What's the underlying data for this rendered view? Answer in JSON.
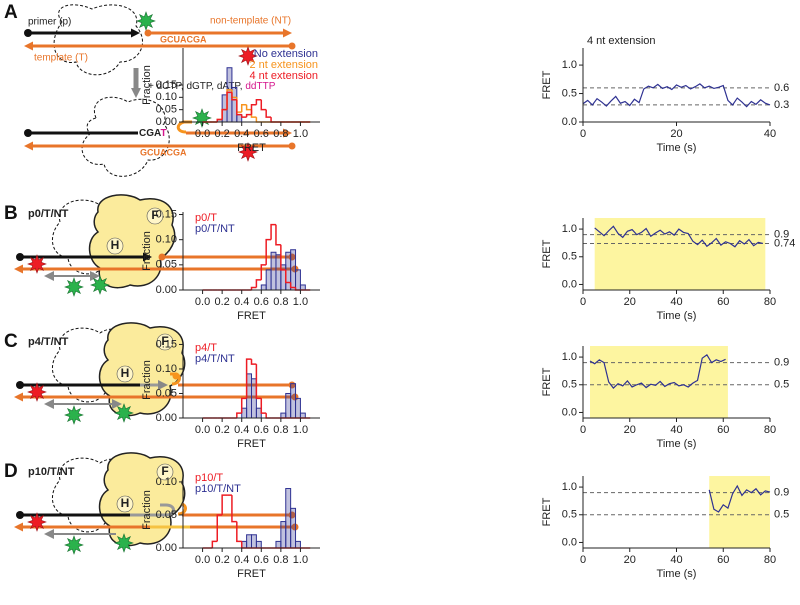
{
  "panels": [
    {
      "label": "A",
      "schematic": {
        "primer": "primer (p)",
        "non_template": "non-template (NT)",
        "template": "template (T)",
        "sequence": "GCUACGA",
        "nucleotides": "+ dCTP, dGTP, dATP,",
        "terminator": "ddTTP",
        "extended": "CGA",
        "added": "T",
        "sequence_after": "GCUACGA"
      }
    },
    {
      "label": "B",
      "schematic": {
        "construct": "p0/T/NT",
        "fingers": "F",
        "helix": "H"
      }
    },
    {
      "label": "C",
      "schematic": {
        "construct": "p4/T/NT",
        "fingers": "F",
        "helix": "H"
      }
    },
    {
      "label": "D",
      "schematic": {
        "construct": "p10/T/NT",
        "fingers": "F",
        "helix": "H"
      }
    }
  ],
  "chart_data": [
    {
      "type": "histogram",
      "x_label": "FRET",
      "y_label": "Fraction",
      "legend": "upper right",
      "bins": [
        0,
        0.05,
        0.1,
        0.15,
        0.2,
        0.25,
        0.3,
        0.35,
        0.4,
        0.45,
        0.5,
        0.55,
        0.6,
        0.65,
        0.7,
        0.75,
        0.8,
        0.85,
        0.9,
        0.95,
        1,
        1.05,
        1.1
      ],
      "series": [
        {
          "name": "No extension",
          "color": "#2e3192",
          "style": "bars",
          "values": [
            0,
            0,
            0,
            0.01,
            0.11,
            0.22,
            0.14,
            0.03,
            0,
            0,
            0,
            0,
            0,
            0,
            0,
            0,
            0,
            0,
            0,
            0,
            0,
            0
          ]
        },
        {
          "name": "2 nt extension",
          "color": "#f7941d",
          "style": "step",
          "values": [
            0,
            0,
            0,
            0.01,
            0.05,
            0.13,
            0.1,
            0.04,
            0.07,
            0.05,
            0.02,
            0,
            0,
            0,
            0,
            0,
            0,
            0,
            0,
            0,
            0,
            0
          ]
        },
        {
          "name": "4 nt extension",
          "color": "#ed1c24",
          "style": "step",
          "values": [
            0,
            0,
            0,
            0.01,
            0.05,
            0.12,
            0.09,
            0.03,
            0.02,
            0.03,
            0.07,
            0.09,
            0.05,
            0.02,
            0,
            0,
            0,
            0,
            0,
            0,
            0,
            0
          ]
        }
      ],
      "xlim": [
        -0.2,
        1.2
      ],
      "xticks": [
        {
          "value": 0,
          "label": "0.0"
        },
        0.2,
        0.4,
        0.6,
        0.8,
        {
          "value": 1,
          "label": "1.0"
        }
      ],
      "ylim": [
        0,
        0.3
      ],
      "yticks": [
        {
          "value": 0,
          "label": "0.00"
        },
        0.05,
        {
          "value": 0.1,
          "label": "0.10"
        },
        0.15
      ]
    },
    {
      "type": "line",
      "title": "4 nt extension",
      "x_label": "Time (s)",
      "y_label": "FRET",
      "color": "#2e3192",
      "x": [
        0,
        1,
        2,
        3,
        4,
        5,
        6,
        7,
        8,
        9,
        10,
        11,
        12,
        13,
        14,
        15,
        16,
        17,
        18,
        19,
        20,
        21,
        22,
        23,
        24,
        25,
        26,
        27,
        28,
        29,
        30,
        31,
        32,
        33,
        34,
        35,
        36,
        37,
        38,
        39,
        40
      ],
      "values": [
        0.32,
        0.38,
        0.3,
        0.41,
        0.35,
        0.28,
        0.37,
        0.45,
        0.33,
        0.36,
        0.29,
        0.4,
        0.34,
        0.58,
        0.63,
        0.6,
        0.66,
        0.59,
        0.62,
        0.57,
        0.65,
        0.61,
        0.64,
        0.58,
        0.62,
        0.67,
        0.6,
        0.63,
        0.59,
        0.61,
        0.64,
        0.38,
        0.3,
        0.42,
        0.35,
        0.27,
        0.36,
        0.31,
        0.39,
        0.33,
        0.3
      ],
      "reference_lines": [
        0.6,
        0.3
      ],
      "xlim": [
        0,
        40
      ],
      "xticks": [
        0,
        20,
        40
      ],
      "ylim": [
        0,
        1.3
      ],
      "yticks": [
        {
          "value": 0,
          "label": "0.0"
        },
        0.5,
        {
          "value": 1,
          "label": "1.0"
        }
      ]
    },
    {
      "type": "histogram",
      "x_label": "FRET",
      "y_label": "Fraction",
      "legend": "upper left",
      "bins": [
        0,
        0.05,
        0.1,
        0.15,
        0.2,
        0.25,
        0.3,
        0.35,
        0.4,
        0.45,
        0.5,
        0.55,
        0.6,
        0.65,
        0.7,
        0.75,
        0.8,
        0.85,
        0.9,
        0.95,
        1,
        1.05,
        1.1
      ],
      "series": [
        {
          "name": "p0/T",
          "color": "#ed1c24",
          "style": "step",
          "values": [
            0,
            0,
            0,
            0,
            0,
            0,
            0,
            0,
            0,
            0,
            0.005,
            0.02,
            0.05,
            0.1,
            0.13,
            0.09,
            0.04,
            0.015,
            0.005,
            0,
            0,
            0
          ]
        },
        {
          "name": "p0/T/NT",
          "color": "#2e3192",
          "style": "bars",
          "values": [
            0,
            0,
            0,
            0,
            0,
            0,
            0,
            0,
            0,
            0,
            0,
            0,
            0.01,
            0.04,
            0.075,
            0.07,
            0.05,
            0.075,
            0.08,
            0.04,
            0.01,
            0
          ]
        }
      ],
      "xlim": [
        -0.2,
        1.2
      ],
      "xticks": [
        {
          "value": 0,
          "label": "0.0"
        },
        0.2,
        0.4,
        0.6,
        0.8,
        {
          "value": 1,
          "label": "1.0"
        }
      ],
      "ylim": [
        0,
        0.155
      ],
      "yticks": [
        {
          "value": 0,
          "label": "0.00"
        },
        0.05,
        {
          "value": 0.1,
          "label": "0.10"
        },
        0.15
      ]
    },
    {
      "type": "line",
      "x_label": "Time (s)",
      "y_label": "FRET",
      "color": "#2e3192",
      "highlight": [
        5,
        78
      ],
      "highlight_color": "#fdf5a0",
      "x": [
        5,
        7,
        9,
        11,
        13,
        15,
        17,
        19,
        21,
        23,
        25,
        27,
        29,
        31,
        33,
        35,
        37,
        39,
        41,
        43,
        45,
        47,
        49,
        51,
        53,
        55,
        57,
        59,
        61,
        63,
        65,
        67,
        69,
        71,
        73,
        75,
        77
      ],
      "values": [
        1.02,
        0.95,
        0.88,
        0.97,
        1.05,
        0.92,
        0.85,
        0.96,
        0.99,
        0.9,
        0.94,
        1.01,
        0.87,
        0.93,
        0.98,
        0.91,
        0.95,
        0.89,
        1.0,
        0.94,
        0.92,
        0.78,
        0.72,
        0.8,
        0.69,
        0.75,
        0.83,
        0.71,
        0.77,
        0.74,
        0.68,
        0.79,
        0.73,
        0.81,
        0.7,
        0.76,
        0.74
      ],
      "reference_lines": [
        0.9,
        0.74
      ],
      "xlim": [
        0,
        80
      ],
      "xticks": [
        0,
        20,
        40,
        60,
        80
      ],
      "ylim": [
        -0.1,
        1.2
      ],
      "yticks": [
        {
          "value": 0,
          "label": "0.0"
        },
        0.5,
        {
          "value": 1,
          "label": "1.0"
        }
      ]
    },
    {
      "type": "histogram",
      "x_label": "FRET",
      "y_label": "Fraction",
      "legend": "upper left",
      "bins": [
        0,
        0.05,
        0.1,
        0.15,
        0.2,
        0.25,
        0.3,
        0.35,
        0.4,
        0.45,
        0.5,
        0.55,
        0.6,
        0.65,
        0.7,
        0.75,
        0.8,
        0.85,
        0.9,
        0.95,
        1,
        1.05,
        1.1
      ],
      "series": [
        {
          "name": "p4/T",
          "color": "#ed1c24",
          "style": "step",
          "values": [
            0,
            0,
            0,
            0,
            0,
            0,
            0,
            0.01,
            0.04,
            0.12,
            0.11,
            0.04,
            0.01,
            0,
            0,
            0,
            0,
            0,
            0,
            0,
            0,
            0
          ]
        },
        {
          "name": "p4/T/NT",
          "color": "#2e3192",
          "style": "bars",
          "values": [
            0,
            0,
            0,
            0,
            0,
            0,
            0,
            0,
            0.02,
            0.09,
            0.08,
            0.02,
            0,
            0,
            0,
            0,
            0.01,
            0.05,
            0.07,
            0.04,
            0.01,
            0
          ]
        }
      ],
      "xlim": [
        -0.2,
        1.2
      ],
      "xticks": [
        {
          "value": 0,
          "label": "0.0"
        },
        0.2,
        0.4,
        0.6,
        0.8,
        {
          "value": 1,
          "label": "1.0"
        }
      ],
      "ylim": [
        0,
        0.155
      ],
      "yticks": [
        {
          "value": 0,
          "label": "0.00"
        },
        0.05,
        {
          "value": 0.1,
          "label": "0.10"
        },
        0.15
      ]
    },
    {
      "type": "line",
      "x_label": "Time (s)",
      "y_label": "FRET",
      "color": "#2e3192",
      "highlight": [
        3,
        62
      ],
      "highlight_color": "#fdf5a0",
      "x": [
        3,
        5,
        7,
        9,
        11,
        13,
        15,
        17,
        19,
        21,
        23,
        25,
        27,
        29,
        31,
        33,
        35,
        37,
        39,
        41,
        43,
        45,
        47,
        49,
        51,
        53,
        55,
        57,
        59,
        61
      ],
      "values": [
        0.93,
        0.88,
        0.95,
        0.9,
        0.55,
        0.44,
        0.52,
        0.48,
        0.57,
        0.46,
        0.5,
        0.53,
        0.45,
        0.51,
        0.49,
        0.56,
        0.47,
        0.52,
        0.54,
        0.48,
        0.5,
        0.46,
        0.53,
        0.58,
        0.98,
        1.04,
        0.9,
        0.95,
        0.92,
        0.96
      ],
      "reference_lines": [
        0.9,
        0.5
      ],
      "xlim": [
        0,
        80
      ],
      "xticks": [
        0,
        20,
        40,
        60,
        80
      ],
      "ylim": [
        -0.1,
        1.2
      ],
      "yticks": [
        {
          "value": 0,
          "label": "0.0"
        },
        0.5,
        {
          "value": 1,
          "label": "1.0"
        }
      ]
    },
    {
      "type": "histogram",
      "x_label": "FRET",
      "y_label": "Fraction",
      "legend": "upper left",
      "bins": [
        0,
        0.05,
        0.1,
        0.15,
        0.2,
        0.25,
        0.3,
        0.35,
        0.4,
        0.45,
        0.5,
        0.55,
        0.6,
        0.65,
        0.7,
        0.75,
        0.8,
        0.85,
        0.9,
        0.95,
        1,
        1.05,
        1.1
      ],
      "series": [
        {
          "name": "p10/T",
          "color": "#ed1c24",
          "style": "step",
          "values": [
            0,
            0,
            0.01,
            0.05,
            0.08,
            0.08,
            0.04,
            0.01,
            0,
            0,
            0,
            0,
            0,
            0,
            0,
            0,
            0,
            0,
            0,
            0,
            0,
            0
          ]
        },
        {
          "name": "p10/T/NT",
          "color": "#2e3192",
          "style": "bars",
          "values": [
            0,
            0,
            0,
            0,
            0,
            0,
            0,
            0,
            0.01,
            0.02,
            0.02,
            0.01,
            0,
            0,
            0,
            0.01,
            0.04,
            0.09,
            0.06,
            0.01,
            0,
            0
          ]
        }
      ],
      "xlim": [
        -0.2,
        1.2
      ],
      "xticks": [
        {
          "value": 0,
          "label": "0.0"
        },
        0.2,
        0.4,
        0.6,
        0.8,
        {
          "value": 1,
          "label": "1.0"
        }
      ],
      "ylim": [
        0,
        0.115
      ],
      "yticks": [
        {
          "value": 0,
          "label": "0.00"
        },
        0.05,
        {
          "value": 0.1,
          "label": "0.10"
        }
      ]
    },
    {
      "type": "line",
      "x_label": "Time (s)",
      "y_label": "FRET",
      "color": "#2e3192",
      "highlight": [
        54,
        80
      ],
      "highlight_color": "#fdf5a0",
      "x": [
        54,
        56,
        58,
        60,
        62,
        64,
        66,
        68,
        70,
        72,
        74,
        76,
        78,
        80
      ],
      "values": [
        0.95,
        0.6,
        0.55,
        0.68,
        0.62,
        0.88,
        1.02,
        0.85,
        0.95,
        0.9,
        0.97,
        0.86,
        0.93,
        0.91
      ],
      "reference_lines": [
        0.9,
        0.5
      ],
      "xlim": [
        0,
        80
      ],
      "xticks": [
        0,
        20,
        40,
        60,
        80
      ],
      "ylim": [
        -0.1,
        1.2
      ],
      "yticks": [
        {
          "value": 0,
          "label": "0.0"
        },
        0.5,
        {
          "value": 1,
          "label": "1.0"
        }
      ]
    }
  ]
}
